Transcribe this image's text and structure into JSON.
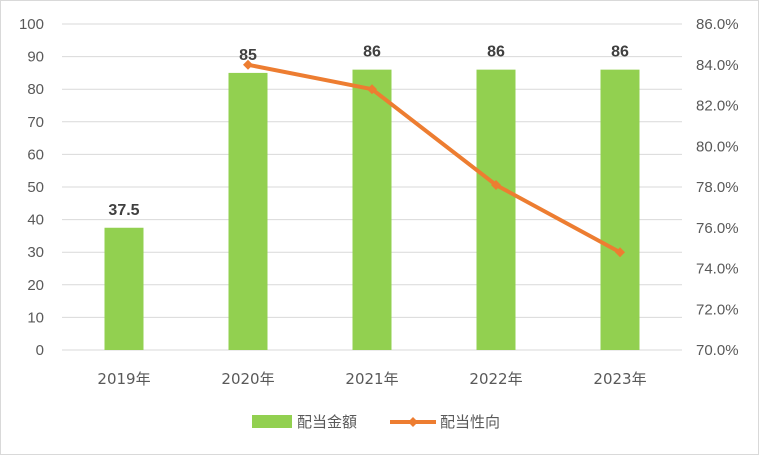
{
  "chart_data": {
    "type": "bar",
    "categories": [
      "2019年",
      "2020年",
      "2021年",
      "2022年",
      "2023年"
    ],
    "series": [
      {
        "name": "配当金額",
        "type": "bar",
        "axis": "left",
        "color": "#92d050",
        "values": [
          37.5,
          85,
          86,
          86,
          86
        ],
        "data_labels": [
          "37.5",
          "85",
          "86",
          "86",
          "86"
        ]
      },
      {
        "name": "配当性向",
        "type": "line",
        "axis": "right",
        "color": "#ed7d31",
        "values": [
          null,
          84.0,
          82.8,
          78.1,
          74.8
        ]
      }
    ],
    "ylim": [
      0,
      100
    ],
    "yticks": [
      "0",
      "10",
      "20",
      "30",
      "40",
      "50",
      "60",
      "70",
      "80",
      "90",
      "100"
    ],
    "y2lim": [
      70,
      86
    ],
    "y2ticks": [
      "70.0%",
      "72.0%",
      "74.0%",
      "76.0%",
      "78.0%",
      "80.0%",
      "82.0%",
      "84.0%",
      "86.0%"
    ],
    "grid": true,
    "legend_position": "bottom"
  }
}
